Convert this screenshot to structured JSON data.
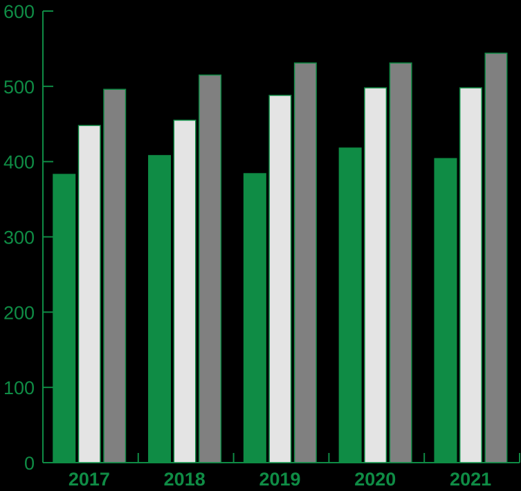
{
  "chart_data": {
    "type": "bar",
    "categories": [
      "2017",
      "2018",
      "2019",
      "2020",
      "2021"
    ],
    "series": [
      {
        "color": "#0f8c45",
        "values": [
          383,
          408,
          384,
          418,
          404
        ]
      },
      {
        "color": "#e4e4e4",
        "values": [
          448,
          455,
          488,
          498,
          498
        ]
      },
      {
        "color": "#808080",
        "values": [
          496,
          515,
          531,
          531,
          544
        ]
      }
    ],
    "y_ticks": [
      "0",
      "100",
      "200",
      "300",
      "400",
      "500",
      "600"
    ],
    "ylim": [
      0,
      600
    ],
    "grid": false,
    "axis_color": "#0f8c45",
    "bar_outline_color": "#0f8c45",
    "background": "#000000",
    "title": "",
    "xlabel": "",
    "ylabel": ""
  }
}
